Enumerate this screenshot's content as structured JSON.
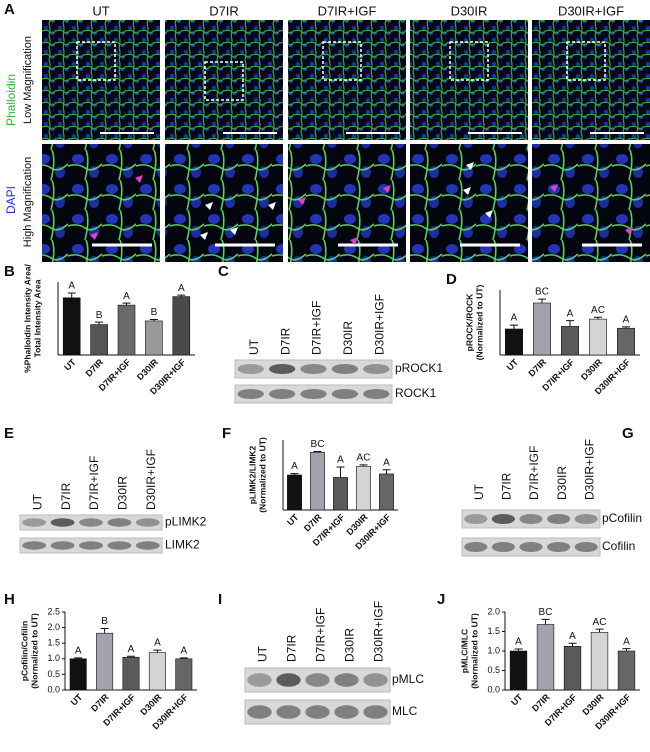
{
  "panel_a": {
    "label": "A",
    "columns": [
      "UT",
      "D7IR",
      "D7IR+IGF",
      "D30IR",
      "D30IR+IGF"
    ],
    "stain_labels": [
      "Phalloidin",
      "DAPI"
    ],
    "row_labels": [
      "Low Magnification",
      "High Magnification"
    ]
  },
  "blots": [
    {
      "label": "C",
      "lanes": [
        "UT",
        "D7IR",
        "D7IR+IGF",
        "D30IR",
        "D30IR+IGF"
      ],
      "bands": [
        "pROCK1",
        "ROCK1"
      ]
    },
    {
      "label": "E",
      "lanes": [
        "UT",
        "D7IR",
        "D7IR+IGF",
        "D30IR",
        "D30IR+IGF"
      ],
      "bands": [
        "pLIMK2",
        "LIMK2"
      ]
    },
    {
      "label": "G",
      "lanes": [
        "UT",
        "D7IR",
        "D7IR+IGF",
        "D30IR",
        "D30IR+IGF"
      ],
      "bands": [
        "pCofilin",
        "Cofilin"
      ]
    },
    {
      "label": "I",
      "lanes": [
        "UT",
        "D7IR",
        "D7IR+IGF",
        "D30IR",
        "D30IR+IGF"
      ],
      "bands": [
        "pMLC",
        "MLC"
      ]
    }
  ],
  "chart_data": [
    {
      "type": "bar",
      "label": "B",
      "ylabel": [
        "%Phalloidin Intensity Area/",
        "Total Intensity Area"
      ],
      "categories": [
        "UT",
        "D7IR",
        "D7IR+IGF",
        "D30IR",
        "D30IR+IGF"
      ],
      "values": [
        23.5,
        12.5,
        20.5,
        14,
        24
      ],
      "errors": [
        2,
        1,
        0.8,
        0.6,
        0.6
      ],
      "letters": [
        "A",
        "B",
        "A",
        "B",
        "A"
      ],
      "colors": [
        "#111111",
        "#555555",
        "#6a6a6a",
        "#9a9a9a",
        "#4a4a4a"
      ],
      "ylim": [
        0,
        30
      ]
    },
    {
      "type": "bar",
      "label": "D",
      "ylabel": [
        "pROCK/ROCK",
        "(Normalized to UT)"
      ],
      "categories": [
        "UT",
        "D7IR",
        "D7IR+IGF",
        "D30IR",
        "D30IR+IGF"
      ],
      "values": [
        1.0,
        2.0,
        1.1,
        1.38,
        1.03
      ],
      "errors": [
        0.15,
        0.15,
        0.22,
        0.07,
        0.05
      ],
      "letters": [
        "A",
        "BC",
        "A",
        "AC",
        "A"
      ],
      "colors": [
        "#111111",
        "#a3a3ad",
        "#5a5a5a",
        "#d4d4d4",
        "#666666"
      ],
      "ylim": [
        0,
        2.5
      ]
    },
    {
      "type": "bar",
      "label": "F",
      "ylabel": [
        "pLIMK2/LIMK2",
        "(Normalized to UT)"
      ],
      "categories": [
        "UT",
        "D7IR",
        "D7IR+IGF",
        "D30IR",
        "D30IR+IGF"
      ],
      "values": [
        1.0,
        1.65,
        0.93,
        1.25,
        1.03
      ],
      "errors": [
        0.04,
        0.02,
        0.3,
        0.04,
        0.12
      ],
      "letters": [
        "A",
        "BC",
        "A",
        "AC",
        "A"
      ],
      "colors": [
        "#111111",
        "#a3a3ad",
        "#5a5a5a",
        "#d4d4d4",
        "#666666"
      ],
      "ylim": [
        0,
        2
      ]
    },
    {
      "type": "bar",
      "label": "H",
      "ylabel": [
        "pCofilin/Cofilin",
        "(Normalized to UT)"
      ],
      "categories": [
        "UT",
        "D7IR",
        "D7IR+IGF",
        "D30IR",
        "D30IR+IGF"
      ],
      "values": [
        1.0,
        1.82,
        1.05,
        1.2,
        1.0
      ],
      "errors": [
        0.03,
        0.15,
        0.03,
        0.08,
        0.03
      ],
      "letters": [
        "A",
        "B",
        "A",
        "A",
        "A"
      ],
      "colors": [
        "#111111",
        "#a3a3ad",
        "#5a5a5a",
        "#d4d4d4",
        "#666666"
      ],
      "ylim": [
        0,
        2.5
      ],
      "yticks": [
        {
          "value": 0,
          "label": "0.0"
        },
        {
          "value": 0.5,
          "label": "0.5"
        },
        {
          "value": 1,
          "label": "1.0"
        },
        {
          "value": 1.5,
          "label": "1.5"
        },
        {
          "value": 2,
          "label": "2.0"
        },
        {
          "value": 2.5,
          "label": "2.5"
        }
      ]
    },
    {
      "type": "bar",
      "label": "J",
      "ylabel": [
        "pMLC/MLC",
        "(Normalized to UT)"
      ],
      "categories": [
        "UT",
        "D7IR",
        "D7IR+IGF",
        "D30IR",
        "D30IR+IGF"
      ],
      "values": [
        1.0,
        1.68,
        1.12,
        1.48,
        1.0
      ],
      "errors": [
        0.05,
        0.13,
        0.08,
        0.08,
        0.06
      ],
      "letters": [
        "A",
        "BC",
        "A",
        "AC",
        "A"
      ],
      "colors": [
        "#111111",
        "#a3a3ad",
        "#5a5a5a",
        "#d4d4d4",
        "#666666"
      ],
      "ylim": [
        0,
        2
      ],
      "yticks": [
        {
          "value": 0,
          "label": "0.0"
        },
        {
          "value": 0.5,
          "label": "0.5"
        },
        {
          "value": 1,
          "label": "1.0"
        },
        {
          "value": 1.5,
          "label": "1.5"
        },
        {
          "value": 2,
          "label": "2.0"
        }
      ]
    }
  ]
}
